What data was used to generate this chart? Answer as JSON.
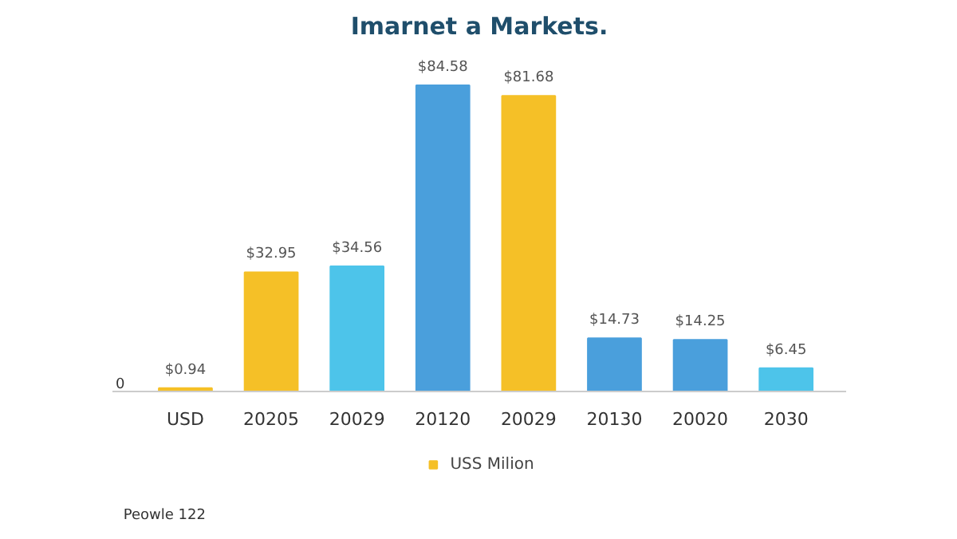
{
  "chart_data": {
    "type": "bar",
    "title": "Imarnet a Markets.",
    "categories": [
      "USD",
      "20205",
      "20029",
      "20120",
      "20029",
      "20130",
      "20020",
      "2030"
    ],
    "series": [
      {
        "name": "USS Milion",
        "color": "#f5c027",
        "colors": [
          "#f5c027",
          "#f5c027",
          "#4dc4ea",
          "#4a9fdc",
          "#f5c027",
          "#4a9fdc",
          "#4a9fdc",
          "#4dc4ea"
        ],
        "values": [
          0.94,
          32.95,
          34.56,
          84.58,
          81.68,
          14.73,
          14.25,
          6.45
        ],
        "value_labels": [
          "$0.94",
          "$32.95",
          "$34.56",
          "$84.58",
          "$81.68",
          "$14.73",
          "$14.25",
          "$6.45"
        ]
      }
    ],
    "legend": "bottom",
    "annotations": [
      "0",
      "Peowle 122"
    ]
  }
}
